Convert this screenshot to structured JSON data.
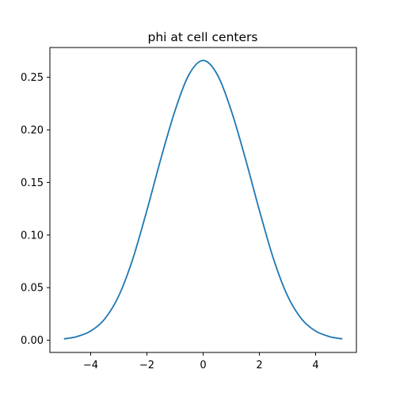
{
  "chart_data": {
    "type": "line",
    "title": "phi at cell centers",
    "xlabel": "",
    "ylabel": "",
    "xlim": [
      -5.45,
      5.45
    ],
    "ylim": [
      -0.0116,
      0.2783
    ],
    "x_ticks": [
      -4,
      -2,
      0,
      2,
      4
    ],
    "x_tick_labels": [
      "−4",
      "−2",
      "0",
      "2",
      "4"
    ],
    "y_ticks": [
      0.0,
      0.05,
      0.1,
      0.15,
      0.2,
      0.25
    ],
    "y_tick_labels": [
      "0.00",
      "0.05",
      "0.10",
      "0.15",
      "0.20",
      "0.25"
    ],
    "grid": false,
    "series": [
      {
        "color": "#1f77b4",
        "x": [
          -4.95,
          -4.5,
          -4.0,
          -3.5,
          -3.0,
          -2.5,
          -2.0,
          -1.5,
          -1.0,
          -0.5,
          0.0,
          0.5,
          1.0,
          1.5,
          2.0,
          2.5,
          3.0,
          3.5,
          4.0,
          4.5,
          4.95
        ],
        "y": [
          0.0013,
          0.0034,
          0.0087,
          0.0203,
          0.0423,
          0.0775,
          0.1235,
          0.1729,
          0.2183,
          0.2527,
          0.266,
          0.2527,
          0.2183,
          0.1729,
          0.1235,
          0.0775,
          0.0423,
          0.0203,
          0.0087,
          0.0034,
          0.0013
        ]
      }
    ]
  }
}
